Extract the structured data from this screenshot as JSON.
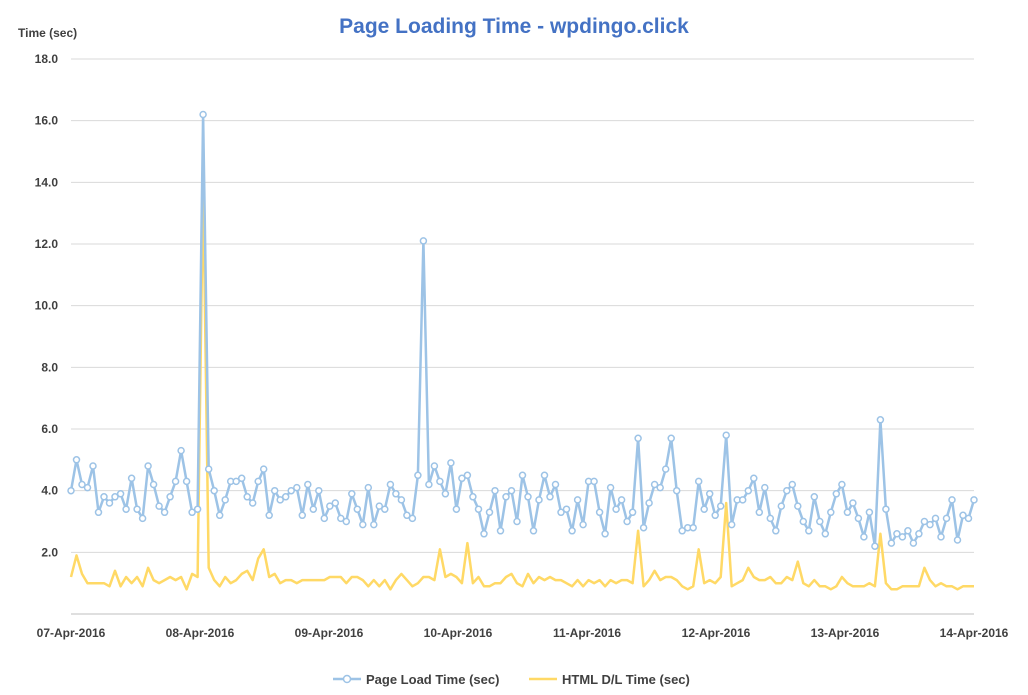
{
  "chart_data": {
    "type": "line",
    "title": "Page Loading Time - wpdingo.click",
    "ylabel": "Time (sec)",
    "xlabel": "",
    "ylim": [
      0,
      18
    ],
    "yticks": [
      "18.0",
      "16.0",
      "14.0",
      "12.0",
      "10.0",
      "8.0",
      "6.0",
      "4.0",
      "2.0"
    ],
    "xticks": [
      "07-Apr-2016",
      "08-Apr-2016",
      "09-Apr-2016",
      "10-Apr-2016",
      "11-Apr-2016",
      "12-Apr-2016",
      "13-Apr-2016",
      "14-Apr-2016"
    ],
    "xlim_days": [
      0,
      7
    ],
    "grid": true,
    "legend_position": "bottom",
    "series": [
      {
        "name": "Page Load Time (sec)",
        "color": "#9dc3e6",
        "markers": true,
        "values": [
          4.0,
          5.0,
          4.2,
          4.1,
          4.8,
          3.3,
          3.8,
          3.6,
          3.8,
          3.9,
          3.4,
          4.4,
          3.4,
          3.1,
          4.8,
          4.2,
          3.5,
          3.3,
          3.8,
          4.3,
          5.3,
          4.3,
          3.3,
          3.4,
          16.2,
          4.7,
          4.0,
          3.2,
          3.7,
          4.3,
          4.3,
          4.4,
          3.8,
          3.6,
          4.3,
          4.7,
          3.2,
          4.0,
          3.7,
          3.8,
          4.0,
          4.1,
          3.2,
          4.2,
          3.4,
          4.0,
          3.1,
          3.5,
          3.6,
          3.1,
          3.0,
          3.9,
          3.4,
          2.9,
          4.1,
          2.9,
          3.5,
          3.4,
          4.2,
          3.9,
          3.7,
          3.2,
          3.1,
          4.5,
          12.1,
          4.2,
          4.8,
          4.3,
          3.9,
          4.9,
          3.4,
          4.4,
          4.5,
          3.8,
          3.4,
          2.6,
          3.3,
          4.0,
          2.7,
          3.8,
          4.0,
          3.0,
          4.5,
          3.8,
          2.7,
          3.7,
          4.5,
          3.8,
          4.2,
          3.3,
          3.4,
          2.7,
          3.7,
          2.9,
          4.3,
          4.3,
          3.3,
          2.6,
          4.1,
          3.4,
          3.7,
          3.0,
          3.3,
          5.7,
          2.8,
          3.6,
          4.2,
          4.1,
          4.7,
          5.7,
          4.0,
          2.7,
          2.8,
          2.8,
          4.3,
          3.4,
          3.9,
          3.2,
          3.5,
          5.8,
          2.9,
          3.7,
          3.7,
          4.0,
          4.4,
          3.3,
          4.1,
          3.1,
          2.7,
          3.5,
          4.0,
          4.2,
          3.5,
          3.0,
          2.7,
          3.8,
          3.0,
          2.6,
          3.3,
          3.9,
          4.2,
          3.3,
          3.6,
          3.1,
          2.5,
          3.3,
          2.2,
          6.3,
          3.4,
          2.3,
          2.6,
          2.5,
          2.7,
          2.3,
          2.6,
          3.0,
          2.9,
          3.1,
          2.5,
          3.1,
          3.7,
          2.4,
          3.2,
          3.1,
          3.7
        ]
      },
      {
        "name": "HTML D/L Time (sec)",
        "color": "#ffd966",
        "markers": false,
        "values": [
          1.2,
          1.9,
          1.3,
          1.0,
          1.0,
          1.0,
          1.0,
          0.9,
          1.4,
          0.9,
          1.2,
          1.0,
          1.2,
          0.9,
          1.5,
          1.1,
          1.0,
          1.1,
          1.2,
          1.1,
          1.2,
          0.8,
          1.3,
          1.2,
          14.0,
          1.5,
          1.1,
          0.9,
          1.2,
          1.0,
          1.1,
          1.3,
          1.4,
          1.1,
          1.8,
          2.1,
          1.2,
          1.3,
          1.0,
          1.1,
          1.1,
          1.0,
          1.1,
          1.1,
          1.1,
          1.1,
          1.1,
          1.2,
          1.2,
          1.2,
          1.0,
          1.2,
          1.2,
          1.1,
          0.9,
          1.1,
          0.9,
          1.1,
          0.8,
          1.1,
          1.3,
          1.1,
          0.9,
          1.0,
          1.2,
          1.2,
          1.1,
          2.1,
          1.2,
          1.3,
          1.2,
          1.0,
          2.3,
          1.0,
          1.2,
          0.9,
          0.9,
          1.0,
          1.0,
          1.2,
          1.3,
          1.0,
          0.9,
          1.3,
          1.0,
          1.2,
          1.1,
          1.2,
          1.1,
          1.1,
          1.0,
          0.9,
          1.1,
          0.9,
          1.1,
          1.0,
          1.1,
          0.9,
          1.1,
          1.0,
          1.1,
          1.1,
          1.0,
          2.7,
          0.9,
          1.1,
          1.4,
          1.1,
          1.2,
          1.2,
          1.1,
          0.9,
          0.8,
          0.9,
          2.1,
          1.0,
          1.1,
          1.0,
          1.2,
          3.6,
          0.9,
          1.0,
          1.1,
          1.5,
          1.2,
          1.1,
          1.1,
          1.2,
          1.0,
          1.0,
          1.2,
          1.1,
          1.7,
          1.0,
          0.9,
          1.1,
          0.9,
          0.9,
          0.8,
          0.9,
          1.2,
          1.0,
          0.9,
          0.9,
          0.9,
          1.0,
          0.9,
          2.6,
          1.0,
          0.8,
          0.8,
          0.9,
          0.9,
          0.9,
          0.9,
          1.5,
          1.1,
          0.9,
          1.0,
          0.9,
          0.9,
          0.8,
          0.9,
          0.9,
          0.9
        ]
      }
    ]
  }
}
